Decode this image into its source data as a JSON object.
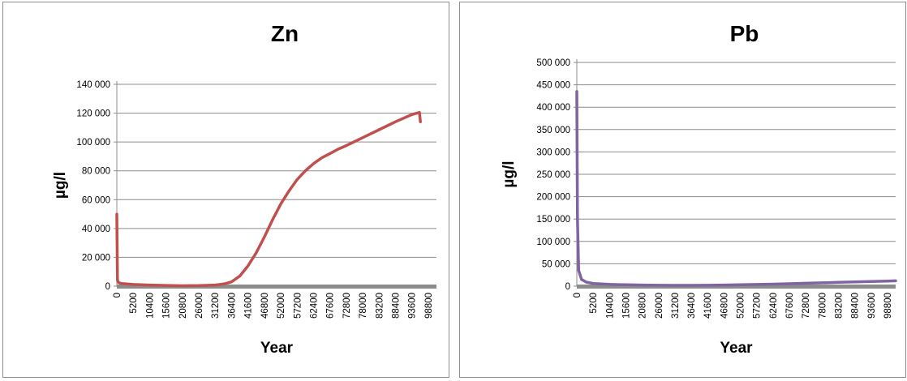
{
  "chart_data": [
    {
      "type": "line",
      "title": "Zn",
      "xlabel": "Year",
      "ylabel": "µg/l",
      "ylim": [
        0,
        140000
      ],
      "y_ticks": [
        "0",
        "20 000",
        "40 000",
        "60 000",
        "80 000",
        "100 000",
        "120 000",
        "140 000"
      ],
      "x_ticks": [
        "0",
        "5200",
        "10400",
        "15600",
        "20800",
        "26000",
        "31200",
        "36400",
        "41600",
        "46800",
        "52000",
        "57200",
        "62400",
        "67600",
        "72800",
        "78000",
        "83200",
        "88400",
        "93600",
        "98800"
      ],
      "xlim": [
        0,
        101400
      ],
      "grid": true,
      "legend": "none",
      "color": "#c0504d",
      "series": [
        {
          "x": [
            0,
            200,
            600,
            1500,
            5200,
            10400,
            15600,
            20800,
            26000,
            31200,
            34000,
            36400,
            39000,
            41600,
            44200,
            46800,
            49400,
            52000,
            54600,
            57200,
            59800,
            62400,
            65000,
            67600,
            70200,
            72800,
            78000,
            83200,
            88400,
            93600,
            96000,
            96300
          ],
          "y": [
            50000,
            4000,
            2500,
            1800,
            1200,
            800,
            500,
            300,
            400,
            800,
            1500,
            3000,
            7000,
            14000,
            23000,
            34000,
            46000,
            57000,
            66000,
            74000,
            80000,
            85000,
            89000,
            92000,
            95000,
            97500,
            103000,
            108500,
            114000,
            119000,
            120500,
            114000
          ]
        }
      ]
    },
    {
      "type": "line",
      "title": "Pb",
      "xlabel": "Year",
      "ylabel": "µg/l",
      "ylim": [
        0,
        500000
      ],
      "y_ticks": [
        "0",
        "50 000",
        "100 000",
        "150 000",
        "200 000",
        "250 000",
        "300 000",
        "350 000",
        "400 000",
        "450 000",
        "500 000"
      ],
      "x_ticks": [
        "0",
        "5200",
        "10400",
        "15600",
        "20800",
        "26000",
        "31200",
        "36400",
        "41600",
        "46800",
        "52000",
        "57200",
        "62400",
        "67600",
        "72800",
        "78000",
        "83200",
        "88400",
        "93600",
        "98800"
      ],
      "xlim": [
        0,
        101400
      ],
      "grid": true,
      "legend": "none",
      "color": "#8064a2",
      "series": [
        {
          "x": [
            0,
            200,
            600,
            1500,
            3000,
            5200,
            10400,
            15600,
            20800,
            26000,
            31200,
            36400,
            41600,
            46800,
            52000,
            57200,
            62400,
            67600,
            72800,
            78000,
            83200,
            88400,
            93600,
            98800,
            101400
          ],
          "y": [
            435000,
            150000,
            35000,
            15000,
            9000,
            6000,
            4000,
            3000,
            2500,
            2000,
            1800,
            1800,
            2000,
            2500,
            3000,
            3800,
            4500,
            5500,
            6500,
            7500,
            8500,
            9500,
            10500,
            11500,
            12000
          ]
        }
      ]
    }
  ]
}
